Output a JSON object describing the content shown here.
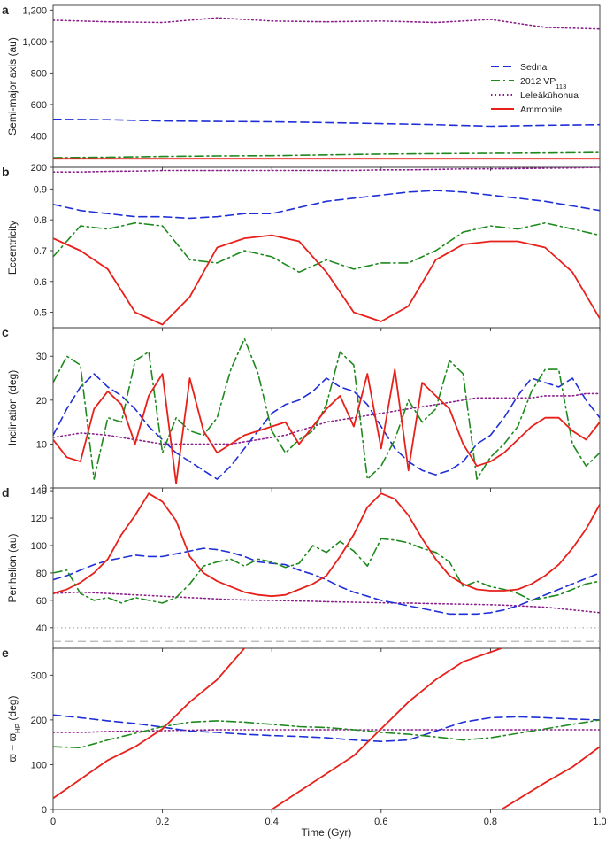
{
  "colors": {
    "Sedna": "#1f2fd6",
    "2012 VP113": "#1e8a1e",
    "Leleākūhonua": "#8a1f8a",
    "Ammonite": "#e8201a",
    "reference": "#b4b4b4"
  },
  "legend": {
    "location": "top-right of panel a",
    "entries": [
      {
        "series": "Sedna",
        "text": "Sedna",
        "sub": "",
        "style": "dashed"
      },
      {
        "series": "2012 VP113",
        "text": "2012 VP",
        "sub": "113",
        "style": "dashdot"
      },
      {
        "series": "Leleākūhonua",
        "text": "Leleākūhonua",
        "sub": "",
        "style": "dotted"
      },
      {
        "series": "Ammonite",
        "text": "Ammonite",
        "sub": "",
        "style": "solid"
      }
    ]
  },
  "xaxis": {
    "label": "Time (Gyr)",
    "ticks": [
      "0",
      "0.2",
      "0.4",
      "0.6",
      "0.8",
      "1.0"
    ],
    "tick_values": [
      0,
      0.2,
      0.4,
      0.6,
      0.8,
      1.0
    ],
    "range": [
      0,
      1.0
    ]
  },
  "chart_data": [
    {
      "panel": "a",
      "type": "line",
      "ylabel": "Semi-major axis (au)",
      "ylim": [
        200,
        1230
      ],
      "yticks": [
        200,
        400,
        600,
        800,
        1000,
        1200
      ],
      "ytick_labels": [
        "200",
        "400",
        "600",
        "800",
        "1,000",
        "1,200"
      ],
      "x": [
        0,
        0.1,
        0.2,
        0.3,
        0.4,
        0.5,
        0.6,
        0.7,
        0.8,
        0.9,
        1.0
      ],
      "series": [
        {
          "name": "Sedna",
          "values": [
            505,
            503,
            495,
            492,
            490,
            485,
            478,
            472,
            462,
            468,
            472
          ]
        },
        {
          "name": "2012 VP113",
          "values": [
            262,
            265,
            270,
            273,
            275,
            280,
            285,
            288,
            290,
            292,
            295
          ]
        },
        {
          "name": "Leleākūhonua",
          "values": [
            1135,
            1125,
            1120,
            1150,
            1130,
            1125,
            1130,
            1120,
            1140,
            1090,
            1080
          ]
        },
        {
          "name": "Ammonite",
          "values": [
            255,
            255,
            255,
            255,
            255,
            255,
            255,
            255,
            255,
            255,
            255
          ]
        }
      ]
    },
    {
      "panel": "b",
      "type": "line",
      "ylabel": "Eccentricity",
      "ylim": [
        0.45,
        0.97
      ],
      "yticks": [
        0.5,
        0.6,
        0.7,
        0.8,
        0.9
      ],
      "ytick_labels": [
        "0.5",
        "0.6",
        "0.7",
        "0.8",
        "0.9"
      ],
      "x": [
        0,
        0.05,
        0.1,
        0.15,
        0.2,
        0.25,
        0.3,
        0.35,
        0.4,
        0.45,
        0.5,
        0.55,
        0.6,
        0.65,
        0.7,
        0.75,
        0.8,
        0.85,
        0.9,
        0.95,
        1.0
      ],
      "series": [
        {
          "name": "Sedna",
          "values": [
            0.85,
            0.83,
            0.82,
            0.81,
            0.81,
            0.805,
            0.81,
            0.82,
            0.82,
            0.84,
            0.86,
            0.87,
            0.88,
            0.89,
            0.895,
            0.89,
            0.88,
            0.87,
            0.86,
            0.845,
            0.83
          ]
        },
        {
          "name": "2012 VP113",
          "values": [
            0.68,
            0.78,
            0.77,
            0.79,
            0.78,
            0.67,
            0.66,
            0.7,
            0.68,
            0.63,
            0.67,
            0.64,
            0.66,
            0.66,
            0.7,
            0.76,
            0.78,
            0.77,
            0.79,
            0.77,
            0.75
          ]
        },
        {
          "name": "Leleākūhonua",
          "values": [
            0.955,
            0.955,
            0.957,
            0.958,
            0.96,
            0.96,
            0.96,
            0.96,
            0.96,
            0.96,
            0.96,
            0.96,
            0.962,
            0.962,
            0.963,
            0.965,
            0.965,
            0.966,
            0.967,
            0.968,
            0.97
          ]
        },
        {
          "name": "Ammonite",
          "values": [
            0.74,
            0.7,
            0.64,
            0.5,
            0.46,
            0.55,
            0.71,
            0.74,
            0.75,
            0.73,
            0.63,
            0.5,
            0.47,
            0.52,
            0.67,
            0.72,
            0.73,
            0.73,
            0.71,
            0.63,
            0.48
          ]
        }
      ]
    },
    {
      "panel": "c",
      "type": "line",
      "ylabel": "Inclination (deg)",
      "ylim": [
        0,
        36.5
      ],
      "yticks": [
        0,
        10,
        20,
        30
      ],
      "ytick_labels": [
        "0",
        "10",
        "20",
        "30"
      ],
      "x": [
        0,
        0.025,
        0.05,
        0.075,
        0.1,
        0.125,
        0.15,
        0.175,
        0.2,
        0.225,
        0.25,
        0.275,
        0.3,
        0.325,
        0.35,
        0.375,
        0.4,
        0.425,
        0.45,
        0.475,
        0.5,
        0.525,
        0.55,
        0.575,
        0.6,
        0.625,
        0.65,
        0.675,
        0.7,
        0.725,
        0.75,
        0.775,
        0.8,
        0.825,
        0.85,
        0.875,
        0.9,
        0.925,
        0.95,
        0.975,
        1.0
      ],
      "series": [
        {
          "name": "Sedna",
          "values": [
            12,
            18,
            23,
            26,
            23,
            21,
            18,
            14,
            11,
            8,
            6,
            4,
            2,
            5,
            9,
            13,
            17,
            19,
            20,
            22,
            25,
            23,
            22,
            19,
            14,
            9,
            6,
            4,
            3,
            4,
            6,
            10,
            12,
            16,
            21,
            25,
            24,
            23,
            25,
            20,
            16
          ]
        },
        {
          "name": "2012 VP113",
          "values": [
            24,
            30,
            28,
            2,
            16,
            15,
            29,
            31,
            8,
            16,
            13,
            12,
            16,
            27,
            34,
            26,
            13,
            8,
            11,
            13,
            19,
            31,
            28,
            2,
            5,
            11,
            20,
            15,
            18,
            29,
            26,
            2,
            7,
            10,
            14,
            22,
            27,
            27,
            10,
            5,
            8
          ]
        },
        {
          "name": "Leleākūhonua",
          "values": [
            11.5,
            12,
            12.5,
            12.3,
            12,
            11.5,
            11,
            10.5,
            10,
            10,
            10,
            10,
            10,
            10,
            10.5,
            11,
            11.5,
            12,
            13,
            14,
            15,
            15.5,
            16,
            16.5,
            17,
            17.5,
            18,
            18.5,
            19,
            19.5,
            20,
            20.5,
            20.5,
            20.5,
            20.5,
            20.5,
            21,
            21,
            21,
            21.5,
            21.5
          ]
        },
        {
          "name": "Ammonite",
          "values": [
            11,
            7,
            6,
            18,
            22,
            19,
            10,
            21,
            26,
            1,
            25,
            13,
            8,
            10,
            12,
            13,
            14,
            15,
            10,
            14,
            18,
            21,
            14,
            26,
            9,
            27,
            4,
            24,
            21,
            18,
            10,
            5,
            6,
            8,
            11,
            14,
            16,
            16,
            13,
            11,
            15
          ]
        }
      ]
    },
    {
      "panel": "d",
      "type": "line",
      "ylabel": "Perihelion (au)",
      "ylim": [
        25,
        142
      ],
      "yticks": [
        40,
        60,
        80,
        100,
        120,
        140
      ],
      "ytick_labels": [
        "40",
        "60",
        "80",
        "100",
        "120",
        "140"
      ],
      "x": [
        0,
        0.025,
        0.05,
        0.075,
        0.1,
        0.125,
        0.15,
        0.175,
        0.2,
        0.225,
        0.25,
        0.275,
        0.3,
        0.325,
        0.35,
        0.375,
        0.4,
        0.425,
        0.45,
        0.475,
        0.5,
        0.525,
        0.55,
        0.575,
        0.6,
        0.625,
        0.65,
        0.675,
        0.7,
        0.725,
        0.75,
        0.775,
        0.8,
        0.825,
        0.85,
        0.875,
        0.9,
        0.925,
        0.95,
        0.975,
        1.0
      ],
      "series": [
        {
          "name": "Sedna",
          "values": [
            75,
            78,
            82,
            86,
            89,
            91,
            93,
            92,
            92,
            94,
            96,
            98,
            97,
            95,
            92,
            88,
            87,
            86,
            82,
            79,
            75,
            70,
            66,
            63,
            60,
            58,
            56,
            54,
            52,
            50,
            50,
            50,
            51,
            53,
            56,
            60,
            64,
            68,
            72,
            76,
            80
          ]
        },
        {
          "name": "2012 VP113",
          "values": [
            80,
            82,
            65,
            60,
            62,
            58,
            62,
            60,
            58,
            62,
            72,
            85,
            88,
            90,
            85,
            90,
            88,
            84,
            87,
            100,
            95,
            103,
            96,
            85,
            105,
            104,
            102,
            98,
            95,
            88,
            70,
            74,
            70,
            68,
            65,
            60,
            62,
            64,
            68,
            72,
            74
          ]
        },
        {
          "name": "Leleākūhonua",
          "values": [
            65,
            65.5,
            66,
            65.5,
            65,
            64.5,
            64,
            63.5,
            63,
            62.5,
            62,
            61.5,
            61,
            60.5,
            60.3,
            60,
            60,
            59.7,
            59.5,
            59.3,
            59,
            58.8,
            58.6,
            58.4,
            58.2,
            58,
            58,
            57.8,
            57.6,
            57.4,
            57.2,
            57,
            56.8,
            56.5,
            56,
            55.5,
            55,
            54,
            53,
            52,
            51
          ]
        },
        {
          "name": "Ammonite",
          "values": [
            65,
            68,
            73,
            80,
            90,
            108,
            122,
            138,
            132,
            118,
            92,
            80,
            74,
            70,
            66,
            64,
            63,
            64,
            68,
            72,
            78,
            92,
            108,
            128,
            138,
            134,
            122,
            105,
            90,
            78,
            72,
            68,
            67,
            67,
            68,
            72,
            78,
            86,
            98,
            112,
            130
          ]
        }
      ],
      "reference_lines": [
        {
          "value": 40,
          "style": "dotted"
        },
        {
          "value": 30,
          "style": "dashed"
        }
      ]
    },
    {
      "panel": "e",
      "type": "line",
      "ylabel_main": "ϖ − ϖ",
      "ylabel_sub": "HP",
      "ylabel_unit": " (deg)",
      "ylim": [
        0,
        360
      ],
      "yticks": [
        0,
        100,
        200,
        300
      ],
      "ytick_labels": [
        "0",
        "100",
        "200",
        "300"
      ],
      "x": [
        0,
        0.05,
        0.1,
        0.15,
        0.2,
        0.25,
        0.3,
        0.35,
        0.4,
        0.45,
        0.5,
        0.55,
        0.6,
        0.65,
        0.7,
        0.75,
        0.8,
        0.85,
        0.9,
        0.95,
        1.0
      ],
      "series": [
        {
          "name": "Sedna",
          "values": [
            211,
            205,
            198,
            192,
            184,
            175,
            172,
            168,
            165,
            163,
            160,
            155,
            152,
            155,
            175,
            195,
            205,
            207,
            205,
            202,
            200
          ]
        },
        {
          "name": "2012 VP113",
          "values": [
            140,
            138,
            155,
            170,
            185,
            195,
            198,
            195,
            190,
            185,
            183,
            178,
            172,
            168,
            162,
            155,
            160,
            170,
            180,
            190,
            200
          ]
        },
        {
          "name": "Leleākūhonua",
          "values": [
            172,
            172,
            174,
            175,
            176,
            177,
            178,
            178,
            178,
            178,
            178,
            178,
            178,
            178,
            178,
            178,
            178,
            178,
            178,
            178,
            178
          ]
        },
        {
          "name": "Ammonite",
          "segments": [
            {
              "x": [
                0,
                0.1,
                0.15,
                0.2,
                0.25,
                0.3,
                0.35
              ],
              "y": [
                25,
                110,
                140,
                180,
                240,
                290,
                360
              ]
            },
            {
              "x": [
                0.4,
                0.45,
                0.5,
                0.55,
                0.6,
                0.65,
                0.7,
                0.75,
                0.82
              ],
              "y": [
                0,
                40,
                80,
                120,
                180,
                240,
                290,
                330,
                360
              ]
            },
            {
              "x": [
                0.82,
                0.9,
                0.95,
                1.0
              ],
              "y": [
                0,
                60,
                95,
                140
              ]
            }
          ]
        }
      ]
    }
  ]
}
